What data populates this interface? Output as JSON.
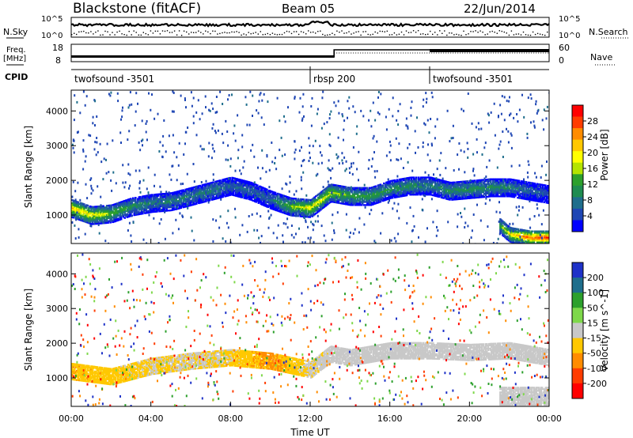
{
  "header": {
    "radar_title": "Blackstone (fitACF)",
    "beam_label": "Beam 05",
    "date_label": "22/Jun/2014"
  },
  "summary_panels": {
    "nsky_label": "N.Sky",
    "nsky_ticks": [
      "10^5",
      "10^0"
    ],
    "nsearch_label": "N.Search",
    "nsearch_ticks": [
      "10^5",
      "10^0"
    ],
    "freq_label": "Freq.",
    "freq_unit": "[MHz]",
    "freq_ticks": [
      "18",
      "8"
    ],
    "nave_label": "Nave",
    "nave_ticks": [
      "60",
      "0"
    ],
    "cpid_label": "CPID",
    "cpid_segments": [
      {
        "name": "twofsound -3501",
        "start_hour": 0,
        "end_hour": 12.0
      },
      {
        "name": "rbsp 200",
        "start_hour": 12.0,
        "end_hour": 18.0
      },
      {
        "name": "twofsound -3501",
        "start_hour": 18.0,
        "end_hour": 24.0
      }
    ]
  },
  "axes": {
    "ylabel": "Slant Range [km]",
    "xlabel": "Time UT",
    "x_ticks": [
      "00:00",
      "04:00",
      "08:00",
      "12:00",
      "16:00",
      "20:00",
      "00:00"
    ],
    "y_ticks": [
      "1000",
      "2000",
      "3000",
      "4000"
    ]
  },
  "power_colorbar": {
    "label": "Power [dB]",
    "ticks": [
      "28",
      "24",
      "20",
      "16",
      "12",
      "8",
      "4"
    ],
    "colors": [
      "#ff0000",
      "#ff3c00",
      "#ff8c00",
      "#ffc800",
      "#ffff00",
      "#b4e400",
      "#2ca02c",
      "#1e8c50",
      "#1e6e8c",
      "#1e46b4",
      "#0000ff"
    ]
  },
  "velocity_colorbar": {
    "label": "Velocity [m s^-1]",
    "ticks": [
      "200",
      "100",
      "50",
      "15",
      "-15",
      "-50",
      "-100",
      "-200"
    ],
    "colors": [
      "#1e32c8",
      "#1e6e8c",
      "#2ca02c",
      "#7ed84a",
      "#c8c8c8",
      "#ffc800",
      "#ff8c00",
      "#ff3c00",
      "#ff0000"
    ]
  },
  "chart_data": [
    {
      "type": "heatmap",
      "title": "Power",
      "x_range_hours": [
        0,
        24
      ],
      "ylim": [
        180,
        4600
      ],
      "value_units": "dB",
      "bands": [
        {
          "time_hours": [
            0.0,
            1.0,
            2.0,
            3.0,
            4.0,
            5.0,
            6.0,
            7.0,
            8.0,
            9.0,
            10.0,
            11.0,
            12.0,
            13.0,
            14.0,
            15.0,
            16.0,
            17.0,
            18.0,
            19.0,
            20.0,
            21.0,
            22.0,
            23.0,
            24.0
          ],
          "range_km": [
            1200,
            1000,
            1050,
            1250,
            1350,
            1400,
            1550,
            1700,
            1850,
            1700,
            1450,
            1250,
            1200,
            1650,
            1550,
            1550,
            1750,
            1850,
            1850,
            1700,
            1750,
            1800,
            1800,
            1700,
            1600
          ],
          "power_db": [
            24,
            22,
            18,
            14,
            12,
            12,
            12,
            12,
            10,
            10,
            10,
            18,
            22,
            20,
            16,
            16,
            14,
            14,
            12,
            14,
            14,
            14,
            12,
            10,
            8
          ]
        },
        {
          "time_hours": [
            21.5,
            22.0,
            23.0,
            24.0
          ],
          "range_km": [
            700,
            450,
            350,
            350
          ],
          "power_db": [
            16,
            22,
            28,
            30
          ]
        }
      ]
    },
    {
      "type": "heatmap",
      "title": "Velocity",
      "x_range_hours": [
        0,
        24
      ],
      "ylim": [
        180,
        4600
      ],
      "value_units": "m s^-1",
      "bands": [
        {
          "time_hours": [
            0.0,
            2.0,
            4.0,
            6.0,
            8.0,
            10.0,
            12.0,
            13.0,
            14.0,
            16.0,
            18.0,
            20.0,
            22.0,
            24.0
          ],
          "range_km": [
            1200,
            1050,
            1350,
            1500,
            1600,
            1500,
            1250,
            1700,
            1600,
            1800,
            1800,
            1750,
            1800,
            1600
          ],
          "velocity_m_s": [
            -40,
            -30,
            -20,
            -10,
            -20,
            -60,
            -10,
            0,
            0,
            0,
            0,
            0,
            0,
            0
          ]
        }
      ]
    }
  ]
}
